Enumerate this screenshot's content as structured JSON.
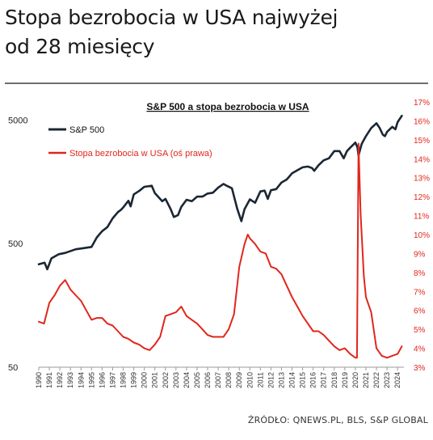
{
  "headline": {
    "line1": "Stopa bezrobocia w USA najwyżej",
    "line2": "od 28 miesięcy"
  },
  "source": "ŹRÓDŁO: QNEWS.PL, BLS, S&P GLOBAL",
  "colors": {
    "sp500": "#1b2733",
    "unemployment": "#e1261c",
    "right_axis_text": "#e1261c"
  },
  "chart_data": {
    "type": "line",
    "title": "S&P 500 a stopa bezrobocia w USA",
    "x_tick_labels": [
      "1990",
      "1991",
      "1992",
      "1993",
      "1994",
      "1995",
      "1996",
      "1997",
      "1998",
      "1999",
      "2000",
      "2001",
      "2002",
      "2003",
      "2004",
      "2005",
      "2006",
      "2007",
      "2008",
      "2009",
      "2010",
      "2011",
      "2012",
      "2013",
      "2014",
      "2015",
      "2016",
      "2017",
      "2018",
      "2019",
      "2020",
      "2021",
      "2022",
      "2023",
      "2024"
    ],
    "xlim": [
      1990,
      2024.6
    ],
    "left_axis": {
      "scale": "log",
      "ylim": [
        50,
        7000
      ],
      "ticks": [
        5000,
        500,
        50
      ],
      "tick_labels": [
        "5000",
        "500",
        "50"
      ]
    },
    "right_axis": {
      "ylim": [
        3,
        17
      ],
      "ticks": [
        17,
        16,
        15,
        14,
        13,
        12,
        11,
        10,
        9,
        8,
        7,
        6,
        5,
        4,
        3
      ],
      "tick_labels": [
        "17%",
        "16%",
        "15%",
        "14%",
        "13%",
        "12%",
        "11%",
        "10%",
        "9%",
        "8%",
        "7%",
        "6%",
        "5%",
        "4%",
        "3%"
      ]
    },
    "legend_placement": "top-left",
    "grid": false,
    "series": [
      {
        "name": "S&P 500",
        "axis": "left",
        "x": [
          1990,
          1990.55,
          1990.8,
          1991.2,
          1991.9,
          1992.5,
          1993.5,
          1994.3,
          1995,
          1995.5,
          1996,
          1996.5,
          1997,
          1997.5,
          1997.8,
          1998,
          1998.5,
          1998.7,
          1999,
          1999.5,
          2000,
          2000.7,
          2001,
          2001.7,
          2002,
          2002.5,
          2002.8,
          2003.2,
          2003.5,
          2004,
          2004.5,
          2005,
          2005.5,
          2006,
          2006.5,
          2007,
          2007.5,
          2007.8,
          2008.3,
          2008.8,
          2009.2,
          2009.5,
          2010,
          2010.5,
          2011,
          2011.4,
          2011.7,
          2012,
          2012.5,
          2013,
          2013.5,
          2014,
          2014.5,
          2015,
          2015.5,
          2015.9,
          2016.1,
          2016.5,
          2017,
          2017.5,
          2018,
          2018.5,
          2018.9,
          2019.2,
          2019.5,
          2020,
          2020.2,
          2020.3,
          2020.6,
          2021,
          2021.5,
          2022,
          2022.3,
          2022.6,
          2022.8,
          2023,
          2023.5,
          2023.8,
          2024,
          2024.4
        ],
        "values": [
          340,
          350,
          310,
          380,
          410,
          420,
          450,
          460,
          470,
          560,
          630,
          680,
          800,
          900,
          940,
          980,
          1110,
          1000,
          1250,
          1330,
          1440,
          1470,
          1280,
          1100,
          1150,
          950,
          820,
          850,
          990,
          1130,
          1100,
          1200,
          1200,
          1270,
          1290,
          1420,
          1520,
          1470,
          1400,
          960,
          760,
          950,
          1140,
          1070,
          1320,
          1340,
          1150,
          1350,
          1380,
          1560,
          1650,
          1850,
          1960,
          2070,
          2100,
          2040,
          1940,
          2150,
          2360,
          2450,
          2800,
          2800,
          2450,
          2800,
          2980,
          3280,
          3000,
          2580,
          3200,
          3700,
          4300,
          4700,
          4300,
          3800,
          3700,
          4000,
          4400,
          4200,
          4800,
          5400
        ]
      },
      {
        "name": "Stopa bezrobocia w USA (oś prawa)",
        "axis": "right",
        "x": [
          1990,
          1990.5,
          1991,
          1991.5,
          1992.0,
          1992.5,
          1993,
          1993.5,
          1994,
          1994.5,
          1995,
          1995.5,
          1996,
          1996.5,
          1997,
          1997.5,
          1998,
          1998.5,
          1999,
          1999.5,
          2000,
          2000.5,
          2001,
          2001.5,
          2002,
          2002.5,
          2003,
          2003.5,
          2004,
          2004.5,
          2005,
          2005.5,
          2006,
          2006.5,
          2007,
          2007.5,
          2008,
          2008.5,
          2009,
          2009.5,
          2009.8,
          2010,
          2010.5,
          2011,
          2011.5,
          2012,
          2012.5,
          2013,
          2013.5,
          2014,
          2014.5,
          2015,
          2015.5,
          2016,
          2016.5,
          2017,
          2017.5,
          2018,
          2018.5,
          2019,
          2019.5,
          2020.0,
          2020.15,
          2020.3,
          2020.5,
          2020.8,
          2021,
          2021.5,
          2022,
          2022.5,
          2023,
          2023.5,
          2024,
          2024.4
        ],
        "values": [
          5.4,
          5.3,
          6.4,
          6.8,
          7.3,
          7.6,
          7.1,
          6.8,
          6.5,
          6.0,
          5.5,
          5.6,
          5.6,
          5.3,
          5.2,
          4.9,
          4.6,
          4.5,
          4.3,
          4.2,
          4.0,
          3.9,
          4.2,
          4.6,
          5.7,
          5.8,
          5.9,
          6.2,
          5.7,
          5.5,
          5.3,
          5.0,
          4.7,
          4.6,
          4.6,
          4.6,
          5.0,
          5.8,
          8.3,
          9.5,
          10.0,
          9.8,
          9.5,
          9.1,
          9.0,
          8.3,
          8.2,
          7.9,
          7.3,
          6.7,
          6.2,
          5.7,
          5.3,
          4.9,
          4.9,
          4.7,
          4.4,
          4.1,
          3.9,
          4.0,
          3.7,
          3.5,
          3.5,
          14.8,
          11.1,
          7.8,
          6.7,
          5.9,
          4.0,
          3.6,
          3.5,
          3.6,
          3.7,
          4.1
        ]
      }
    ]
  }
}
